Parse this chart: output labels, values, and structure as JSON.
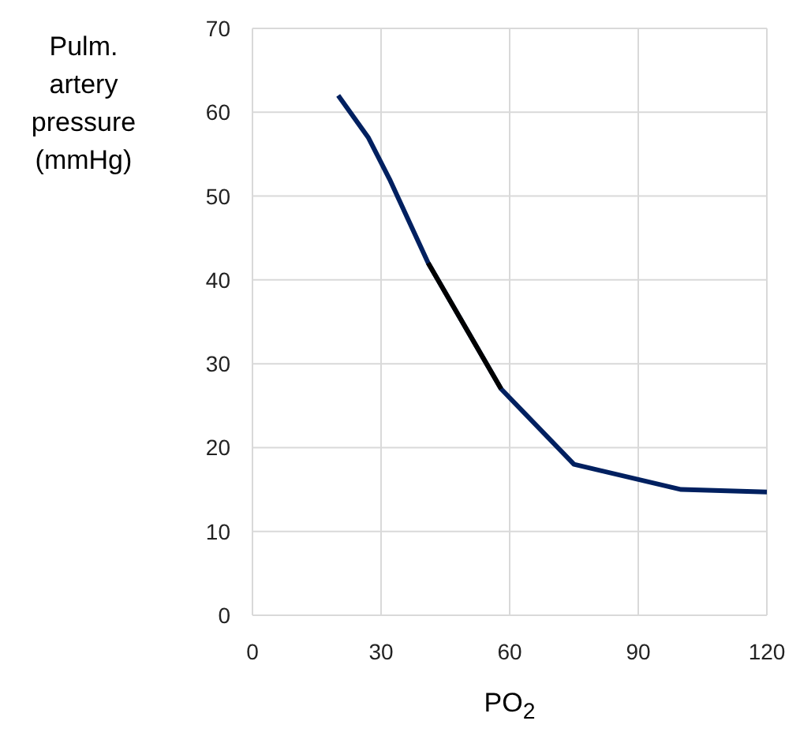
{
  "chart_data": {
    "type": "line",
    "xlabel": "PO$_{2}$",
    "ylabel": "Pulm. artery pressure (mmHg)",
    "xlim": [
      0,
      120
    ],
    "xticks": [
      0,
      30,
      60,
      90,
      120
    ],
    "ylim": [
      0,
      70
    ],
    "yticks": [
      0,
      10,
      20,
      30,
      40,
      50,
      60,
      70
    ],
    "grid": true,
    "marker": "none",
    "line_style": "solid",
    "series": [
      {
        "color": "#002060",
        "x": [
          20,
          27,
          32,
          41,
          58,
          75,
          100,
          120
        ],
        "values": [
          62,
          57,
          52,
          42,
          27,
          18,
          15,
          14.7
        ]
      },
      {
        "color": "#000000",
        "x": [
          41,
          58
        ],
        "values": [
          42,
          27
        ]
      }
    ]
  }
}
